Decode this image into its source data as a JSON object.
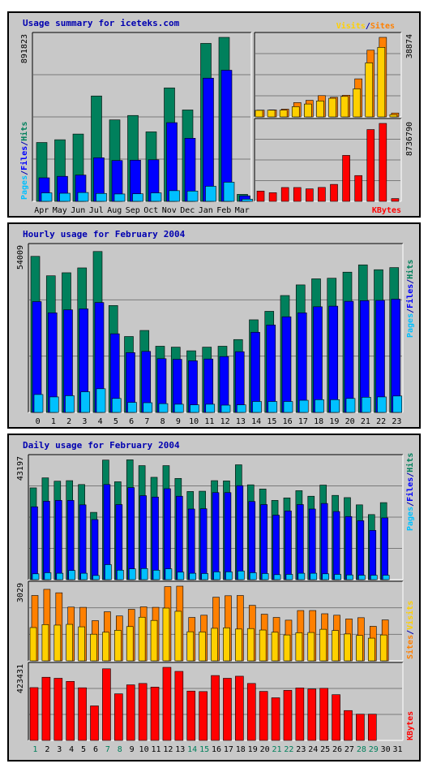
{
  "colors": {
    "hits": "#00805c",
    "files": "#0000ff",
    "pages": "#00c0ff",
    "visits": "#ffd000",
    "sites": "#ff8000",
    "kbytes": "#ff0000",
    "title": "#0000b0",
    "bg": "#c8c8c8",
    "grid": "#7a7a7a"
  },
  "summary": {
    "title_words": [
      "Usage",
      "summary",
      "for",
      "iceteks.com"
    ],
    "legend": {
      "pages": "Pages",
      "files": "Files",
      "hits": "Hits",
      "slash": "/",
      "visits": "Visits",
      "sites": "Sites",
      "kbytes": "KBytes"
    },
    "max_hits_label": "891823",
    "max_visits_label": "38874",
    "max_kbytes_label": "8736790"
  },
  "hourly": {
    "title_words": [
      "Hourly",
      "usage",
      "for",
      "February",
      "2004"
    ],
    "legend": {
      "pages": "Pages",
      "files": "Files",
      "hits": "Hits",
      "slash": "/"
    },
    "max_label": "54009"
  },
  "daily": {
    "title_words": [
      "Daily",
      "usage",
      "for",
      "February",
      "2004"
    ],
    "legend": {
      "pages": "Pages",
      "files": "Files",
      "hits": "Hits",
      "slash": "/",
      "visits": "Visits",
      "sites": "Sites",
      "kbytes": "KBytes"
    },
    "max_hits_label": "43197",
    "max_visits_label": "3029",
    "max_kbytes_label": "423431"
  },
  "chart_data": [
    {
      "type": "bar",
      "title": "Usage summary for iceteks.com",
      "subplot": "hits-files-pages",
      "categories": [
        "Apr",
        "May",
        "Jun",
        "Jul",
        "Aug",
        "Sep",
        "Oct",
        "Nov",
        "Dec",
        "Jan",
        "Feb",
        "Mar"
      ],
      "ylim": [
        0,
        891823
      ],
      "series": [
        {
          "name": "Hits",
          "values": [
            320000,
            335000,
            366000,
            573000,
            443000,
            467000,
            378000,
            617000,
            497000,
            859000,
            891823,
            38000
          ]
        },
        {
          "name": "Files",
          "values": [
            128000,
            136000,
            143000,
            237000,
            222000,
            224000,
            226000,
            428000,
            343000,
            670000,
            713000,
            30000
          ]
        },
        {
          "name": "Pages",
          "values": [
            46000,
            44000,
            48000,
            43000,
            40000,
            41000,
            46000,
            58000,
            56000,
            82000,
            104000,
            12000
          ]
        }
      ]
    },
    {
      "type": "bar",
      "title": "Usage summary for iceteks.com",
      "subplot": "visits-sites",
      "categories": [
        "Apr",
        "May",
        "Jun",
        "Jul",
        "Aug",
        "Sep",
        "Oct",
        "Nov",
        "Dec",
        "Jan",
        "Feb",
        "Mar"
      ],
      "ylim": [
        0,
        38874
      ],
      "series": [
        {
          "name": "Visits",
          "values": [
            3200,
            3300,
            3300,
            5000,
            6300,
            7800,
            9100,
            10000,
            13700,
            26400,
            34000,
            1100
          ]
        },
        {
          "name": "Sites",
          "values": [
            3300,
            3400,
            3800,
            7000,
            8100,
            10400,
            9600,
            10600,
            18600,
            32600,
            38874,
            1900
          ]
        }
      ]
    },
    {
      "type": "bar",
      "title": "Usage summary for iceteks.com",
      "subplot": "kbytes",
      "categories": [
        "Apr",
        "May",
        "Jun",
        "Jul",
        "Aug",
        "Sep",
        "Oct",
        "Nov",
        "Dec",
        "Jan",
        "Feb",
        "Mar"
      ],
      "ylim": [
        0,
        8736790
      ],
      "series": [
        {
          "name": "KBytes",
          "values": [
            1150000,
            970000,
            1550000,
            1550000,
            1400000,
            1560000,
            1900000,
            5150000,
            2890000,
            8050000,
            8736790,
            310000
          ]
        }
      ]
    },
    {
      "type": "bar",
      "title": "Hourly usage for February 2004",
      "subplot": "hits-files-pages",
      "categories": [
        "0",
        "1",
        "2",
        "3",
        "4",
        "5",
        "6",
        "7",
        "8",
        "9",
        "10",
        "11",
        "12",
        "13",
        "14",
        "15",
        "16",
        "17",
        "18",
        "19",
        "20",
        "21",
        "22",
        "23"
      ],
      "ylim": [
        0,
        54009
      ],
      "series": [
        {
          "name": "Hits",
          "values": [
            51400,
            45000,
            46000,
            47600,
            53000,
            35200,
            25000,
            27000,
            21800,
            21500,
            20300,
            21500,
            21800,
            24000,
            30500,
            33300,
            38500,
            42000,
            44000,
            44200,
            46200,
            48600,
            47000,
            47700
          ]
        },
        {
          "name": "Files",
          "values": [
            36500,
            32800,
            33800,
            34100,
            36200,
            25900,
            19700,
            20100,
            17700,
            17500,
            17000,
            17600,
            18400,
            20000,
            26400,
            28800,
            31500,
            32800,
            34800,
            35000,
            36600,
            36800,
            36900,
            37300
          ]
        },
        {
          "name": "Pages",
          "values": [
            5900,
            5100,
            5500,
            6800,
            7800,
            4600,
            3300,
            3200,
            2900,
            2700,
            2500,
            2700,
            2400,
            2500,
            3600,
            3600,
            3600,
            4000,
            4200,
            4200,
            4600,
            5000,
            5100,
            5400
          ]
        }
      ]
    },
    {
      "type": "bar",
      "title": "Daily usage for February 2004",
      "subplot": "hits-files-pages",
      "categories": [
        "1",
        "2",
        "3",
        "4",
        "5",
        "6",
        "7",
        "8",
        "9",
        "10",
        "11",
        "12",
        "13",
        "14",
        "15",
        "16",
        "17",
        "18",
        "19",
        "20",
        "21",
        "22",
        "23",
        "24",
        "25",
        "26",
        "27",
        "28",
        "29",
        "30",
        "31"
      ],
      "ylim": [
        0,
        43197
      ],
      "series": [
        {
          "name": "Hits",
          "values": [
            33000,
            36600,
            35400,
            35600,
            34200,
            24200,
            43000,
            35200,
            43100,
            41000,
            36800,
            41000,
            36400,
            31700,
            31800,
            35600,
            35500,
            41300,
            34100,
            32600,
            28500,
            29400,
            32000,
            30000,
            34000,
            30300,
            29500,
            26900,
            23400,
            27700,
            0
          ]
        },
        {
          "name": "Files",
          "values": [
            26200,
            28200,
            28500,
            28500,
            26900,
            21600,
            34200,
            27000,
            33100,
            30200,
            29700,
            32700,
            30000,
            25400,
            25500,
            31300,
            31300,
            33800,
            28100,
            27000,
            23200,
            24700,
            27000,
            25400,
            27400,
            24500,
            22700,
            21200,
            17700,
            22200,
            0
          ]
        },
        {
          "name": "Pages",
          "values": [
            2100,
            2500,
            2300,
            3300,
            2300,
            1500,
            5400,
            3400,
            3900,
            4000,
            3400,
            3900,
            2700,
            2300,
            2200,
            2800,
            2800,
            3100,
            2500,
            2200,
            1800,
            1900,
            2300,
            2300,
            2100,
            1900,
            1700,
            1600,
            1600,
            1600,
            0
          ]
        }
      ]
    },
    {
      "type": "bar",
      "title": "Daily usage for February 2004",
      "subplot": "visits-sites",
      "categories": [
        "1",
        "2",
        "3",
        "4",
        "5",
        "6",
        "7",
        "8",
        "9",
        "10",
        "11",
        "12",
        "13",
        "14",
        "15",
        "16",
        "17",
        "18",
        "19",
        "20",
        "21",
        "22",
        "23",
        "24",
        "25",
        "26",
        "27",
        "28",
        "29",
        "30",
        "31"
      ],
      "ylim": [
        0,
        3029
      ],
      "series": [
        {
          "name": "Visits",
          "values": [
            1350,
            1470,
            1450,
            1480,
            1380,
            1080,
            1160,
            1240,
            1390,
            1770,
            1640,
            2140,
            2010,
            1180,
            1170,
            1320,
            1340,
            1290,
            1310,
            1250,
            1160,
            1050,
            1140,
            1150,
            1280,
            1230,
            1090,
            1030,
            920,
            1050,
            0
          ]
        },
        {
          "name": "Sites",
          "values": [
            2650,
            2900,
            2760,
            2180,
            2170,
            1630,
            1990,
            1820,
            2090,
            2190,
            2170,
            3010,
            3029,
            1760,
            1850,
            2580,
            2640,
            2650,
            2250,
            1890,
            1760,
            1650,
            2040,
            2040,
            1910,
            1850,
            1700,
            1750,
            1400,
            1660,
            0
          ]
        }
      ]
    },
    {
      "type": "bar",
      "title": "Daily usage for February 2004",
      "subplot": "kbytes",
      "categories": [
        "1",
        "2",
        "3",
        "4",
        "5",
        "6",
        "7",
        "8",
        "9",
        "10",
        "11",
        "12",
        "13",
        "14",
        "15",
        "16",
        "17",
        "18",
        "19",
        "20",
        "21",
        "22",
        "23",
        "24",
        "25",
        "26",
        "27",
        "28",
        "29",
        "30",
        "31"
      ],
      "ylim": [
        0,
        423431
      ],
      "series": [
        {
          "name": "KBytes",
          "values": [
            306000,
            366000,
            360000,
            342000,
            305000,
            200000,
            415000,
            270000,
            322000,
            330000,
            309000,
            423431,
            400000,
            286000,
            283000,
            376000,
            360000,
            372000,
            330000,
            284000,
            247000,
            290000,
            304000,
            298000,
            302000,
            265000,
            173000,
            152000,
            152000,
            0,
            0
          ]
        }
      ]
    }
  ]
}
